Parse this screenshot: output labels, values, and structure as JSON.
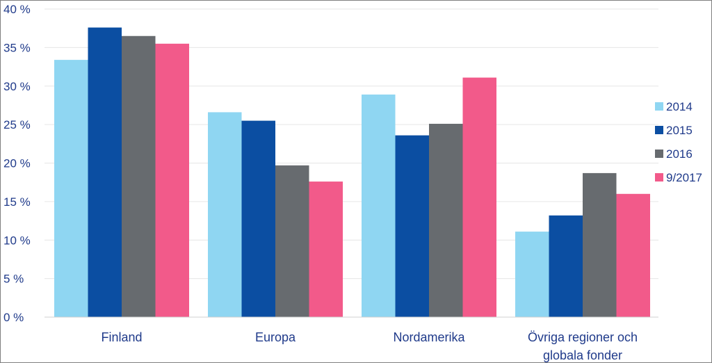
{
  "chart_data": {
    "type": "bar",
    "categories": [
      "Finland",
      "Europa",
      "Nordamerika",
      "Övriga regioner och globala fonder"
    ],
    "category_lines": [
      [
        "Finland"
      ],
      [
        "Europa"
      ],
      [
        "Nordamerika"
      ],
      [
        "Övriga regioner och",
        "globala fonder"
      ]
    ],
    "series": [
      {
        "name": "2014",
        "color": "#8fd6f2",
        "values": [
          33.4,
          26.6,
          28.9,
          11.1
        ]
      },
      {
        "name": "2015",
        "color": "#0b4ea2",
        "values": [
          37.6,
          25.5,
          23.6,
          13.2
        ]
      },
      {
        "name": "2016",
        "color": "#676b6f",
        "values": [
          36.5,
          19.7,
          25.1,
          18.7
        ]
      },
      {
        "name": "9/2017",
        "color": "#f25a8a",
        "values": [
          35.5,
          17.6,
          31.1,
          16.0
        ]
      }
    ],
    "yticks": [
      0,
      5,
      10,
      15,
      20,
      25,
      30,
      35,
      40
    ],
    "ytick_labels": [
      "0 %",
      "5 %",
      "10 %",
      "15 %",
      "20 %",
      "25 %",
      "30 %",
      "35 %",
      "40 %"
    ],
    "ylim": [
      0,
      40
    ],
    "title": "",
    "xlabel": "",
    "ylabel": "",
    "grid": true,
    "legend_position": "right"
  }
}
